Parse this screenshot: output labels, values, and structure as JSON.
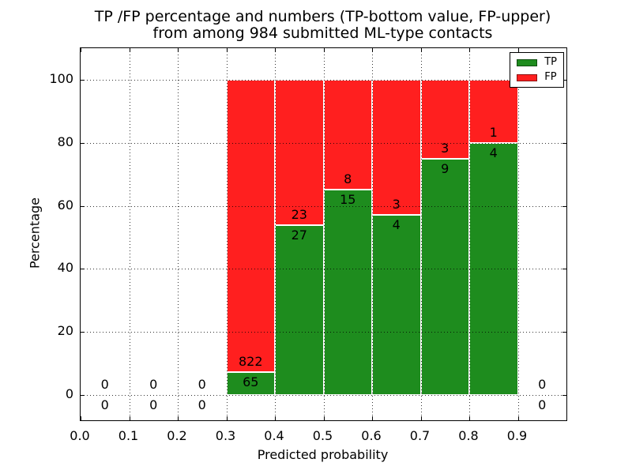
{
  "chart_data": {
    "type": "bar",
    "stacked": true,
    "title_line1": "TP /FP percentage and numbers (TP-bottom value, FP-upper)",
    "title_line2": "from among 984 submitted ML-type contacts",
    "xlabel": "Predicted probability",
    "ylabel": "Percentage",
    "xlim": [
      0.0,
      1.0
    ],
    "ylim": [
      -8,
      110
    ],
    "grid": "dotted-both-axes-over-bars",
    "bar_value_unit": "percent of bin total (TP+FP), stacked to 100%",
    "xticks": {
      "values": [
        0.0,
        0.1,
        0.2,
        0.3,
        0.4,
        0.5,
        0.6,
        0.7,
        0.8,
        0.9
      ],
      "labels": [
        "0.0",
        "0.1",
        "0.2",
        "0.3",
        "0.4",
        "0.5",
        "0.6",
        "0.7",
        "0.8",
        "0.9"
      ]
    },
    "yticks": {
      "values": [
        0,
        20,
        40,
        60,
        80,
        100
      ],
      "labels": [
        "0",
        "20",
        "40",
        "60",
        "80",
        "100"
      ]
    },
    "legend": {
      "position": "upper right",
      "entries": [
        {
          "label": "TP",
          "color": "#1e8c1e"
        },
        {
          "label": "FP",
          "color": "#ff1f1f"
        }
      ]
    },
    "colors": {
      "tp": "#1e8c1e",
      "fp": "#ff1f1f",
      "bar_edge": "#ffffff",
      "grid": "#000000"
    },
    "bins": [
      {
        "range": [
          0.0,
          0.1
        ],
        "tp": 0,
        "fp": 0
      },
      {
        "range": [
          0.1,
          0.2
        ],
        "tp": 0,
        "fp": 0
      },
      {
        "range": [
          0.2,
          0.3
        ],
        "tp": 0,
        "fp": 0
      },
      {
        "range": [
          0.3,
          0.4
        ],
        "tp": 65,
        "fp": 822
      },
      {
        "range": [
          0.4,
          0.5
        ],
        "tp": 27,
        "fp": 23
      },
      {
        "range": [
          0.5,
          0.6
        ],
        "tp": 15,
        "fp": 8
      },
      {
        "range": [
          0.6,
          0.7
        ],
        "tp": 4,
        "fp": 3
      },
      {
        "range": [
          0.7,
          0.8
        ],
        "tp": 9,
        "fp": 3
      },
      {
        "range": [
          0.8,
          0.9
        ],
        "tp": 4,
        "fp": 1
      },
      {
        "range": [
          0.9,
          1.0
        ],
        "tp": 0,
        "fp": 0
      }
    ]
  }
}
